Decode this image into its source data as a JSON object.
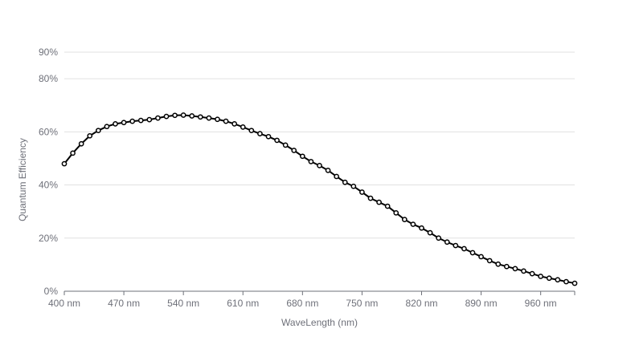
{
  "chart_data": {
    "type": "line",
    "title": "",
    "xlabel": "WaveLength (nm)",
    "ylabel": "Quantum Efficiency",
    "xlim": [
      400,
      1000
    ],
    "ylim": [
      0,
      90
    ],
    "x_ticks": [
      "400 nm",
      "470 nm",
      "540 nm",
      "610 nm",
      "680 nm",
      "750 nm",
      "820 nm",
      "890 nm",
      "960 nm"
    ],
    "x_tick_values": [
      400,
      470,
      540,
      610,
      680,
      750,
      820,
      890,
      960
    ],
    "y_ticks": [
      "0%",
      "20%",
      "40%",
      "60%",
      "80%",
      "90%"
    ],
    "y_tick_values": [
      0,
      20,
      40,
      60,
      80,
      90
    ],
    "grid": true,
    "line_color": "#000000",
    "series": [
      {
        "x": [
          400,
          410,
          420,
          430,
          440,
          450,
          460,
          470,
          480,
          490,
          500,
          510,
          520,
          530,
          540,
          550,
          560,
          570,
          580,
          590,
          600,
          610,
          620,
          630,
          640,
          650,
          660,
          670,
          680,
          690,
          700,
          710,
          720,
          730,
          740,
          750,
          760,
          770,
          780,
          790,
          800,
          810,
          820,
          830,
          840,
          850,
          860,
          870,
          880,
          890,
          900,
          910,
          920,
          930,
          940,
          950,
          960,
          970,
          980,
          990,
          1000
        ],
        "values": [
          48,
          52,
          55.5,
          58.5,
          60.5,
          62,
          63,
          63.5,
          64,
          64.3,
          64.6,
          65.2,
          65.8,
          66.2,
          66.3,
          66,
          65.6,
          65.2,
          64.7,
          64,
          63,
          61.8,
          60.5,
          59.3,
          58.2,
          56.8,
          55,
          53,
          50.8,
          48.8,
          47.3,
          45.5,
          43.2,
          41,
          39.5,
          37.3,
          35,
          33.5,
          32,
          29.5,
          27,
          25.2,
          23.8,
          22,
          20,
          18.5,
          17.2,
          16,
          14.5,
          13,
          11.5,
          10.2,
          9.3,
          8.5,
          7.6,
          6.6,
          5.6,
          4.9,
          4.3,
          3.6,
          3
        ]
      }
    ]
  }
}
